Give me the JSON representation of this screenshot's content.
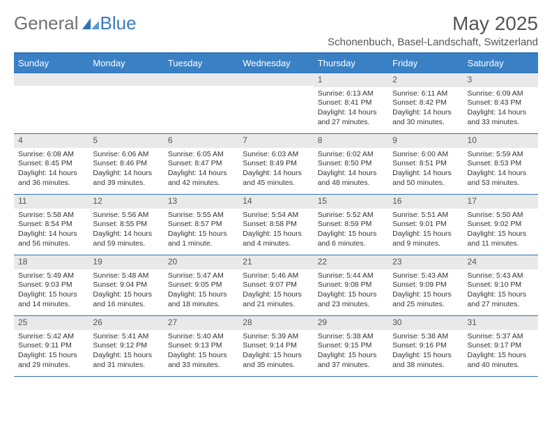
{
  "logo": {
    "text1": "General",
    "text2": "Blue"
  },
  "title": "May 2025",
  "location": "Schonenbuch, Basel-Landschaft, Switzerland",
  "colors": {
    "header_bar": "#3a80c4",
    "border": "#2e72b5",
    "daynum_bg": "#e9e9e9",
    "text": "#333333",
    "title_text": "#555555"
  },
  "dow": [
    "Sunday",
    "Monday",
    "Tuesday",
    "Wednesday",
    "Thursday",
    "Friday",
    "Saturday"
  ],
  "weeks": [
    [
      null,
      null,
      null,
      null,
      {
        "n": "1",
        "sr": "Sunrise: 6:13 AM",
        "ss": "Sunset: 8:41 PM",
        "d1": "Daylight: 14 hours",
        "d2": "and 27 minutes."
      },
      {
        "n": "2",
        "sr": "Sunrise: 6:11 AM",
        "ss": "Sunset: 8:42 PM",
        "d1": "Daylight: 14 hours",
        "d2": "and 30 minutes."
      },
      {
        "n": "3",
        "sr": "Sunrise: 6:09 AM",
        "ss": "Sunset: 8:43 PM",
        "d1": "Daylight: 14 hours",
        "d2": "and 33 minutes."
      }
    ],
    [
      {
        "n": "4",
        "sr": "Sunrise: 6:08 AM",
        "ss": "Sunset: 8:45 PM",
        "d1": "Daylight: 14 hours",
        "d2": "and 36 minutes."
      },
      {
        "n": "5",
        "sr": "Sunrise: 6:06 AM",
        "ss": "Sunset: 8:46 PM",
        "d1": "Daylight: 14 hours",
        "d2": "and 39 minutes."
      },
      {
        "n": "6",
        "sr": "Sunrise: 6:05 AM",
        "ss": "Sunset: 8:47 PM",
        "d1": "Daylight: 14 hours",
        "d2": "and 42 minutes."
      },
      {
        "n": "7",
        "sr": "Sunrise: 6:03 AM",
        "ss": "Sunset: 8:49 PM",
        "d1": "Daylight: 14 hours",
        "d2": "and 45 minutes."
      },
      {
        "n": "8",
        "sr": "Sunrise: 6:02 AM",
        "ss": "Sunset: 8:50 PM",
        "d1": "Daylight: 14 hours",
        "d2": "and 48 minutes."
      },
      {
        "n": "9",
        "sr": "Sunrise: 6:00 AM",
        "ss": "Sunset: 8:51 PM",
        "d1": "Daylight: 14 hours",
        "d2": "and 50 minutes."
      },
      {
        "n": "10",
        "sr": "Sunrise: 5:59 AM",
        "ss": "Sunset: 8:53 PM",
        "d1": "Daylight: 14 hours",
        "d2": "and 53 minutes."
      }
    ],
    [
      {
        "n": "11",
        "sr": "Sunrise: 5:58 AM",
        "ss": "Sunset: 8:54 PM",
        "d1": "Daylight: 14 hours",
        "d2": "and 56 minutes."
      },
      {
        "n": "12",
        "sr": "Sunrise: 5:56 AM",
        "ss": "Sunset: 8:55 PM",
        "d1": "Daylight: 14 hours",
        "d2": "and 59 minutes."
      },
      {
        "n": "13",
        "sr": "Sunrise: 5:55 AM",
        "ss": "Sunset: 8:57 PM",
        "d1": "Daylight: 15 hours",
        "d2": "and 1 minute."
      },
      {
        "n": "14",
        "sr": "Sunrise: 5:54 AM",
        "ss": "Sunset: 8:58 PM",
        "d1": "Daylight: 15 hours",
        "d2": "and 4 minutes."
      },
      {
        "n": "15",
        "sr": "Sunrise: 5:52 AM",
        "ss": "Sunset: 8:59 PM",
        "d1": "Daylight: 15 hours",
        "d2": "and 6 minutes."
      },
      {
        "n": "16",
        "sr": "Sunrise: 5:51 AM",
        "ss": "Sunset: 9:01 PM",
        "d1": "Daylight: 15 hours",
        "d2": "and 9 minutes."
      },
      {
        "n": "17",
        "sr": "Sunrise: 5:50 AM",
        "ss": "Sunset: 9:02 PM",
        "d1": "Daylight: 15 hours",
        "d2": "and 11 minutes."
      }
    ],
    [
      {
        "n": "18",
        "sr": "Sunrise: 5:49 AM",
        "ss": "Sunset: 9:03 PM",
        "d1": "Daylight: 15 hours",
        "d2": "and 14 minutes."
      },
      {
        "n": "19",
        "sr": "Sunrise: 5:48 AM",
        "ss": "Sunset: 9:04 PM",
        "d1": "Daylight: 15 hours",
        "d2": "and 16 minutes."
      },
      {
        "n": "20",
        "sr": "Sunrise: 5:47 AM",
        "ss": "Sunset: 9:05 PM",
        "d1": "Daylight: 15 hours",
        "d2": "and 18 minutes."
      },
      {
        "n": "21",
        "sr": "Sunrise: 5:46 AM",
        "ss": "Sunset: 9:07 PM",
        "d1": "Daylight: 15 hours",
        "d2": "and 21 minutes."
      },
      {
        "n": "22",
        "sr": "Sunrise: 5:44 AM",
        "ss": "Sunset: 9:08 PM",
        "d1": "Daylight: 15 hours",
        "d2": "and 23 minutes."
      },
      {
        "n": "23",
        "sr": "Sunrise: 5:43 AM",
        "ss": "Sunset: 9:09 PM",
        "d1": "Daylight: 15 hours",
        "d2": "and 25 minutes."
      },
      {
        "n": "24",
        "sr": "Sunrise: 5:43 AM",
        "ss": "Sunset: 9:10 PM",
        "d1": "Daylight: 15 hours",
        "d2": "and 27 minutes."
      }
    ],
    [
      {
        "n": "25",
        "sr": "Sunrise: 5:42 AM",
        "ss": "Sunset: 9:11 PM",
        "d1": "Daylight: 15 hours",
        "d2": "and 29 minutes."
      },
      {
        "n": "26",
        "sr": "Sunrise: 5:41 AM",
        "ss": "Sunset: 9:12 PM",
        "d1": "Daylight: 15 hours",
        "d2": "and 31 minutes."
      },
      {
        "n": "27",
        "sr": "Sunrise: 5:40 AM",
        "ss": "Sunset: 9:13 PM",
        "d1": "Daylight: 15 hours",
        "d2": "and 33 minutes."
      },
      {
        "n": "28",
        "sr": "Sunrise: 5:39 AM",
        "ss": "Sunset: 9:14 PM",
        "d1": "Daylight: 15 hours",
        "d2": "and 35 minutes."
      },
      {
        "n": "29",
        "sr": "Sunrise: 5:38 AM",
        "ss": "Sunset: 9:15 PM",
        "d1": "Daylight: 15 hours",
        "d2": "and 37 minutes."
      },
      {
        "n": "30",
        "sr": "Sunrise: 5:38 AM",
        "ss": "Sunset: 9:16 PM",
        "d1": "Daylight: 15 hours",
        "d2": "and 38 minutes."
      },
      {
        "n": "31",
        "sr": "Sunrise: 5:37 AM",
        "ss": "Sunset: 9:17 PM",
        "d1": "Daylight: 15 hours",
        "d2": "and 40 minutes."
      }
    ]
  ]
}
